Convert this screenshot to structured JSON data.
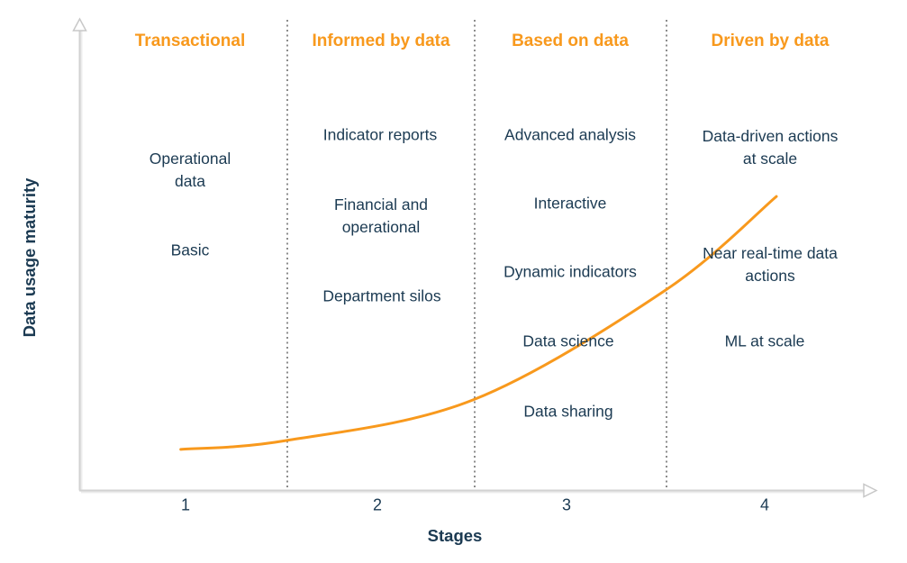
{
  "palette": {
    "accent_orange": "#F8991D",
    "text_navy": "#1B3A52",
    "axis_gray": "#D2D2D2",
    "divider_gray": "#8C8C8C",
    "background": "#FFFFFF"
  },
  "chart_data": {
    "type": "line",
    "title": "",
    "xlabel": "Stages",
    "ylabel": "Data usage maturity",
    "x_ticks": [
      "1",
      "2",
      "3",
      "4"
    ],
    "x_range": [
      0.45,
      4.6
    ],
    "y_range": [
      0,
      1
    ],
    "grid": false,
    "legend": false,
    "dividers_at_stages": [
      1.5,
      2.5,
      3.5
    ],
    "stages": [
      {
        "stage": "1",
        "label": "Transactional",
        "items": [
          "Operational\ndata",
          "Basic"
        ]
      },
      {
        "stage": "2",
        "label": "Informed by data",
        "items": [
          "Indicator reports",
          "Financial and\noperational",
          "Department silos"
        ]
      },
      {
        "stage": "3",
        "label": "Based on data",
        "items": [
          "Advanced analysis",
          "Interactive",
          "Dynamic indicators",
          "Data science",
          "Data sharing"
        ]
      },
      {
        "stage": "4",
        "label": "Driven by data",
        "items": [
          "Data-driven actions\nat scale",
          "Near real-time data\nactions",
          "ML at scale"
        ]
      }
    ],
    "curve": {
      "name": "data-usage-maturity-curve",
      "color": "#F8991D",
      "stroke_width": 3,
      "points_stage_vs_maturity": [
        [
          0.98,
          0.098
        ],
        [
          1.53,
          0.12
        ],
        [
          2.5,
          0.22
        ],
        [
          3.5,
          0.49
        ],
        [
          4.08,
          0.722
        ]
      ]
    }
  }
}
